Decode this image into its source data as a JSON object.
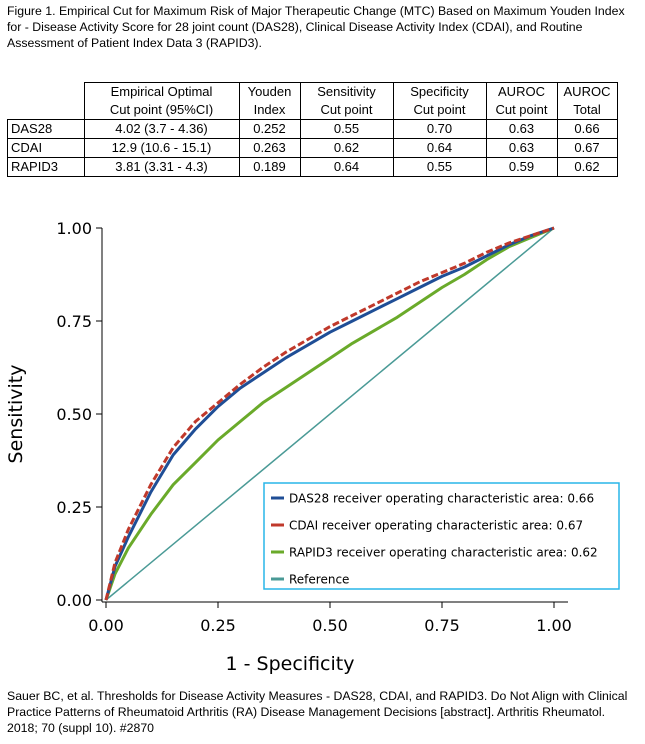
{
  "caption": "Figure 1. Empirical Cut for Maximum Risk of Major Therapeutic Change (MTC) Based on Maximum Youden Index for - Disease Activity Score for 28 joint count (DAS28), Clinical Disease Activity Index (CDAI), and Routine Assessment of Patient Index Data 3 (RAPID3).",
  "table": {
    "headers": [
      [
        "Empirical Optimal",
        "Cut point (95%CI)"
      ],
      [
        "Youden",
        "Index"
      ],
      [
        "Sensitivity",
        "Cut point"
      ],
      [
        "Specificity",
        "Cut point"
      ],
      [
        "AUROC",
        "Cut point"
      ],
      [
        "AUROC",
        "Total"
      ]
    ],
    "rows": [
      {
        "label": "DAS28",
        "cells": [
          "4.02 (3.7 - 4.36)",
          "0.252",
          "0.55",
          "0.70",
          "0.63",
          "0.66"
        ]
      },
      {
        "label": "CDAI",
        "cells": [
          "12.9 (10.6 - 15.1)",
          "0.263",
          "0.62",
          "0.64",
          "0.63",
          "0.67"
        ]
      },
      {
        "label": "RAPID3",
        "cells": [
          "3.81 (3.31 - 4.3)",
          "0.189",
          "0.64",
          "0.55",
          "0.59",
          "0.62"
        ]
      }
    ]
  },
  "chart_data": {
    "type": "line",
    "title": "",
    "xlabel": "1 - Specificity",
    "ylabel": "Sensitivity",
    "xlim": [
      0,
      1
    ],
    "ylim": [
      0,
      1
    ],
    "xticks": [
      "0.00",
      "0.25",
      "0.50",
      "0.75",
      "1.00"
    ],
    "yticks": [
      "0.00",
      "0.25",
      "0.50",
      "0.75",
      "1.00"
    ],
    "legend_position": "bottom-right",
    "legend_border_color": "#29b6e8",
    "series": [
      {
        "name": "DAS28 receiver operating characteristic area: 0.66",
        "color": "#1f4e96",
        "dashed": false,
        "x": [
          0,
          0.02,
          0.05,
          0.1,
          0.15,
          0.2,
          0.25,
          0.3,
          0.35,
          0.4,
          0.45,
          0.5,
          0.55,
          0.6,
          0.65,
          0.7,
          0.75,
          0.8,
          0.85,
          0.9,
          0.95,
          1.0
        ],
        "y": [
          0,
          0.09,
          0.17,
          0.29,
          0.39,
          0.46,
          0.52,
          0.57,
          0.61,
          0.65,
          0.685,
          0.72,
          0.75,
          0.78,
          0.81,
          0.84,
          0.87,
          0.895,
          0.925,
          0.955,
          0.98,
          1.0
        ]
      },
      {
        "name": "CDAI receiver operating characteristic area: 0.67",
        "color": "#c0392b",
        "dashed": true,
        "x": [
          0,
          0.02,
          0.05,
          0.1,
          0.15,
          0.2,
          0.25,
          0.3,
          0.35,
          0.4,
          0.45,
          0.5,
          0.55,
          0.6,
          0.65,
          0.7,
          0.75,
          0.8,
          0.85,
          0.9,
          0.95,
          1.0
        ],
        "y": [
          0,
          0.1,
          0.19,
          0.31,
          0.41,
          0.48,
          0.53,
          0.58,
          0.625,
          0.665,
          0.7,
          0.735,
          0.765,
          0.795,
          0.825,
          0.855,
          0.88,
          0.905,
          0.935,
          0.96,
          0.98,
          1.0
        ]
      },
      {
        "name": "RAPID3 receiver operating characteristic area: 0.62",
        "color": "#6aaa2a",
        "dashed": false,
        "x": [
          0,
          0.02,
          0.05,
          0.1,
          0.15,
          0.2,
          0.25,
          0.3,
          0.35,
          0.4,
          0.45,
          0.5,
          0.55,
          0.6,
          0.65,
          0.7,
          0.75,
          0.8,
          0.85,
          0.9,
          0.95,
          1.0
        ],
        "y": [
          0,
          0.07,
          0.14,
          0.23,
          0.31,
          0.37,
          0.43,
          0.48,
          0.53,
          0.57,
          0.61,
          0.65,
          0.69,
          0.725,
          0.76,
          0.8,
          0.84,
          0.875,
          0.915,
          0.95,
          0.975,
          1.0
        ]
      },
      {
        "name": "Reference",
        "color": "#4a9a96",
        "dashed": false,
        "x": [
          0,
          1
        ],
        "y": [
          0,
          1
        ]
      }
    ]
  },
  "footer": "Sauer BC, et al. Thresholds for Disease Activity Measures - DAS28, CDAI, and RAPID3. Do Not Align with Clinical Practice Patterns of Rheumatoid Arthritis (RA) Disease Management Decisions [abstract]. Arthritis Rheumatol. 2018; 70 (suppl 10). #2870"
}
